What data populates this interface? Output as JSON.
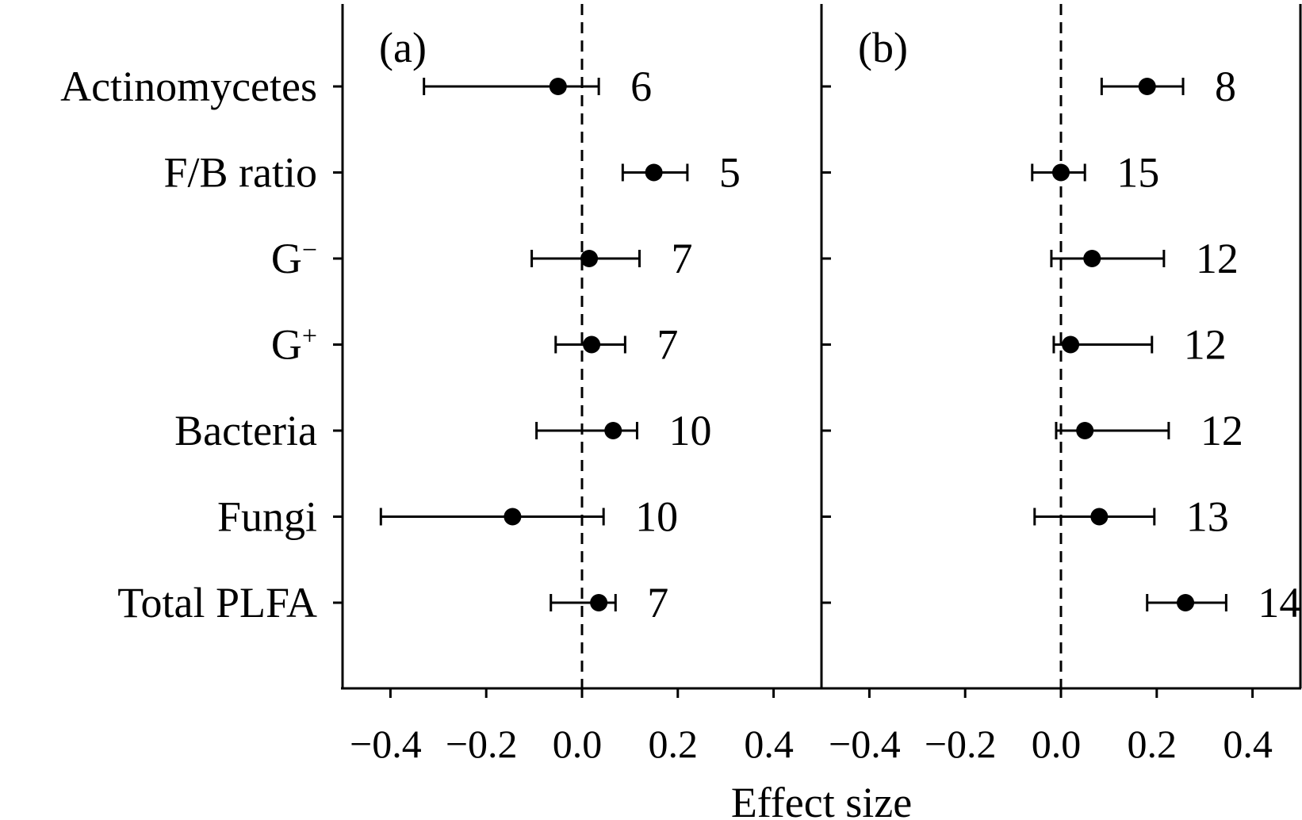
{
  "chart_data": {
    "type": "scatter",
    "subtype": "forest-plot",
    "xlabel": "Effect size",
    "categories": [
      "Actinomycetes",
      "F/B ratio",
      "G−",
      "G+",
      "Bacteria",
      "Fungi",
      "Total PLFA"
    ],
    "category_display": [
      {
        "base": "Actinomycetes",
        "sup": ""
      },
      {
        "base": "F/B ratio",
        "sup": ""
      },
      {
        "base": "G",
        "sup": "−"
      },
      {
        "base": "G",
        "sup": "+"
      },
      {
        "base": "Bacteria",
        "sup": ""
      },
      {
        "base": "Fungi",
        "sup": ""
      },
      {
        "base": "Total PLFA",
        "sup": ""
      }
    ],
    "xlim": [
      -0.5,
      0.5
    ],
    "xticks": [
      -0.4,
      -0.2,
      0.0,
      0.2,
      0.4
    ],
    "xtick_labels": [
      "−0.4",
      "−0.2",
      "0.0",
      "0.2",
      "0.4"
    ],
    "reference_line": 0.0,
    "marker_color": "#000000",
    "panels": [
      {
        "label": "(a)",
        "points": [
          {
            "category": "Actinomycetes",
            "mean": -0.05,
            "lower": -0.33,
            "upper": 0.035,
            "n": "6"
          },
          {
            "category": "F/B ratio",
            "mean": 0.15,
            "lower": 0.085,
            "upper": 0.22,
            "n": "5"
          },
          {
            "category": "G−",
            "mean": 0.015,
            "lower": -0.105,
            "upper": 0.12,
            "n": "7"
          },
          {
            "category": "G+",
            "mean": 0.02,
            "lower": -0.055,
            "upper": 0.09,
            "n": "7"
          },
          {
            "category": "Bacteria",
            "mean": 0.065,
            "lower": -0.095,
            "upper": 0.115,
            "n": "10"
          },
          {
            "category": "Fungi",
            "mean": -0.145,
            "lower": -0.42,
            "upper": 0.045,
            "n": "10"
          },
          {
            "category": "Total PLFA",
            "mean": 0.035,
            "lower": -0.065,
            "upper": 0.07,
            "n": "7"
          }
        ]
      },
      {
        "label": "(b)",
        "points": [
          {
            "category": "Actinomycetes",
            "mean": 0.18,
            "lower": 0.085,
            "upper": 0.255,
            "n": "8"
          },
          {
            "category": "F/B ratio",
            "mean": 0.0,
            "lower": -0.06,
            "upper": 0.05,
            "n": "15"
          },
          {
            "category": "G−",
            "mean": 0.065,
            "lower": -0.02,
            "upper": 0.215,
            "n": "12"
          },
          {
            "category": "G+",
            "mean": 0.02,
            "lower": -0.015,
            "upper": 0.19,
            "n": "12"
          },
          {
            "category": "Bacteria",
            "mean": 0.05,
            "lower": -0.01,
            "upper": 0.225,
            "n": "12"
          },
          {
            "category": "Fungi",
            "mean": 0.08,
            "lower": -0.055,
            "upper": 0.195,
            "n": "13"
          },
          {
            "category": "Total PLFA",
            "mean": 0.26,
            "lower": 0.18,
            "upper": 0.345,
            "n": "14"
          }
        ]
      }
    ]
  }
}
